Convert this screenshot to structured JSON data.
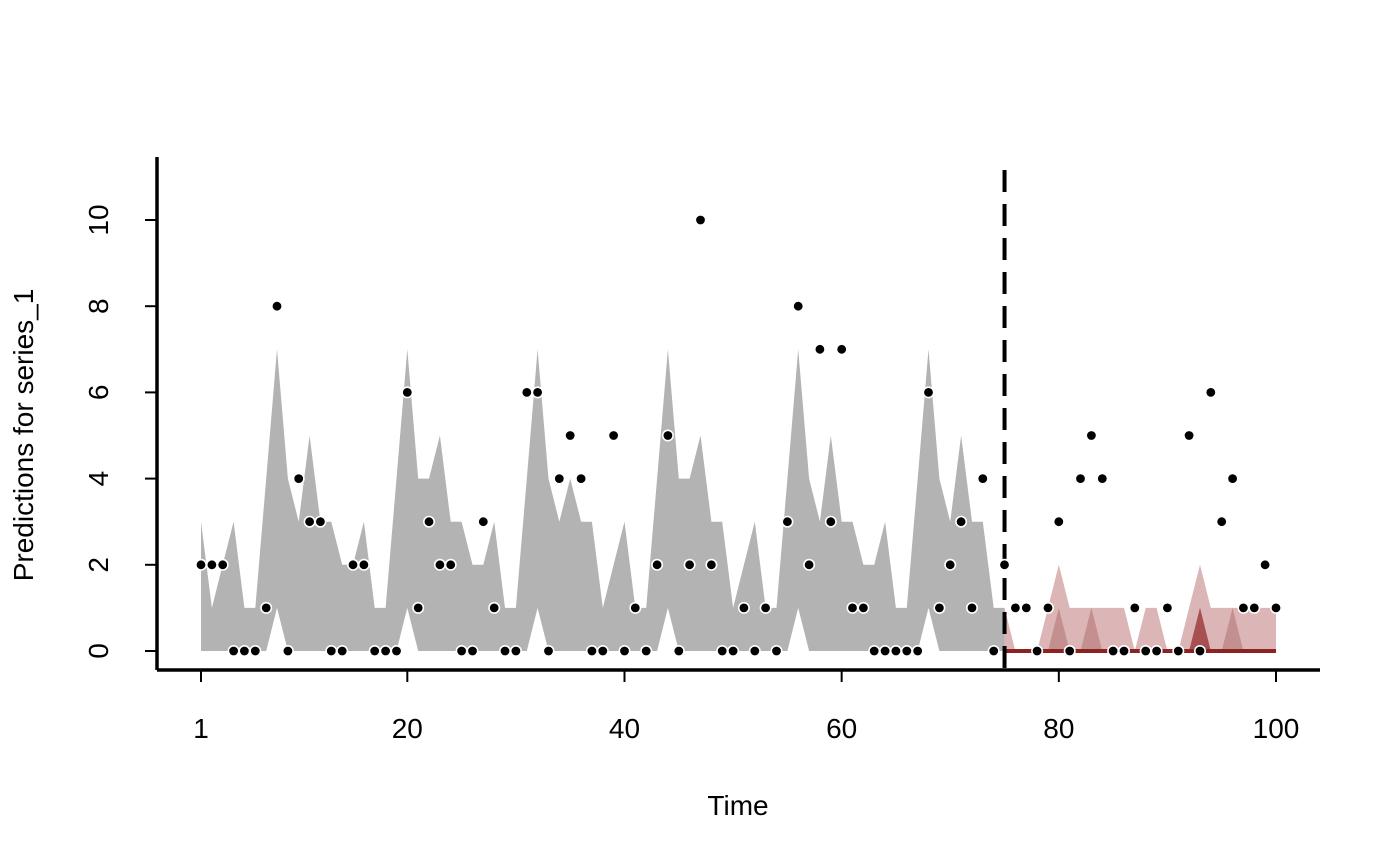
{
  "chart_data": {
    "type": "line",
    "xlabel": "Time",
    "ylabel": "Predictions for series_1",
    "xlim": [
      1,
      100
    ],
    "ylim": [
      0,
      10
    ],
    "x_ticks": [
      1,
      20,
      40,
      60,
      80,
      100
    ],
    "y_ticks": [
      0,
      2,
      4,
      6,
      8,
      10
    ],
    "forecast_start": 75,
    "colors": {
      "fit_band": "#b3b3b3",
      "forecast_band_outer": "#dcb6b6",
      "forecast_band_mid": "#c48f8f",
      "forecast_band_inner": "#a65050",
      "forecast_line": "#8b2323",
      "points": "#000000",
      "vline": "#000000"
    },
    "fit_upper": [
      3,
      1,
      2,
      3,
      1,
      1,
      4,
      7,
      4,
      3,
      5,
      3,
      3,
      2,
      2,
      3,
      1,
      1,
      4,
      7,
      4,
      4,
      5,
      3,
      3,
      2,
      2,
      3,
      1,
      1,
      4,
      7,
      4,
      3,
      4,
      3,
      3,
      1,
      2,
      3,
      1,
      1,
      4,
      7,
      4,
      4,
      5,
      3,
      3,
      1,
      2,
      3,
      1,
      1,
      4,
      7,
      4,
      3,
      5,
      3,
      3,
      2,
      2,
      3,
      1,
      1,
      4,
      7,
      4,
      3,
      5,
      3,
      3,
      1,
      1
    ],
    "fit_lower": [
      0,
      0,
      0,
      0,
      0,
      0,
      0,
      1,
      0,
      0,
      0,
      0,
      0,
      0,
      0,
      0,
      0,
      0,
      0,
      1,
      0,
      0,
      0,
      0,
      0,
      0,
      0,
      0,
      0,
      0,
      0,
      1,
      0,
      0,
      0,
      0,
      0,
      0,
      0,
      0,
      0,
      0,
      0,
      1,
      0,
      0,
      0,
      0,
      0,
      0,
      0,
      0,
      0,
      0,
      0,
      1,
      0,
      0,
      0,
      0,
      0,
      0,
      0,
      0,
      0,
      0,
      0,
      1,
      0,
      0,
      0,
      0,
      0,
      0,
      0
    ],
    "forecast_outer": [
      1,
      0,
      0,
      0,
      1,
      2,
      1,
      1,
      1,
      1,
      1,
      1,
      0,
      1,
      1,
      0,
      0,
      1,
      2,
      1,
      1,
      1,
      1,
      1,
      1,
      1
    ],
    "forecast_mid": [
      0,
      0,
      0,
      0,
      0,
      1,
      0,
      0,
      1,
      0,
      0,
      0,
      0,
      0,
      0,
      0,
      0,
      0,
      1,
      0,
      0,
      1,
      0,
      0,
      0,
      0
    ],
    "forecast_inner": [
      0,
      0,
      0,
      0,
      0,
      0,
      0,
      0,
      0,
      0,
      0,
      0,
      0,
      0,
      0,
      0,
      0,
      0,
      1,
      0,
      0,
      0,
      0,
      0,
      0,
      0
    ],
    "forecast_line": [
      0,
      0,
      0,
      0,
      0,
      0,
      0,
      0,
      0,
      0,
      0,
      0,
      0,
      0,
      0,
      0,
      0,
      0,
      0,
      0,
      0,
      0,
      0,
      0,
      0,
      0
    ],
    "points_y": [
      2,
      2,
      2,
      0,
      0,
      0,
      1,
      8,
      0,
      4,
      3,
      3,
      0,
      0,
      2,
      2,
      0,
      0,
      0,
      6,
      1,
      3,
      2,
      2,
      0,
      0,
      3,
      1,
      0,
      0,
      6,
      6,
      0,
      4,
      5,
      4,
      0,
      0,
      5,
      0,
      1,
      0,
      2,
      5,
      0,
      2,
      10,
      2,
      0,
      0,
      1,
      0,
      1,
      0,
      3,
      8,
      2,
      7,
      3,
      7,
      1,
      1,
      0,
      0,
      0,
      0,
      0,
      6,
      1,
      2,
      3,
      1,
      4,
      0,
      2,
      1,
      1,
      0,
      1,
      3,
      0,
      4,
      5,
      4,
      0,
      0,
      1,
      0,
      0,
      1,
      0,
      5,
      0,
      6,
      3,
      4,
      1,
      1,
      2,
      1
    ]
  }
}
